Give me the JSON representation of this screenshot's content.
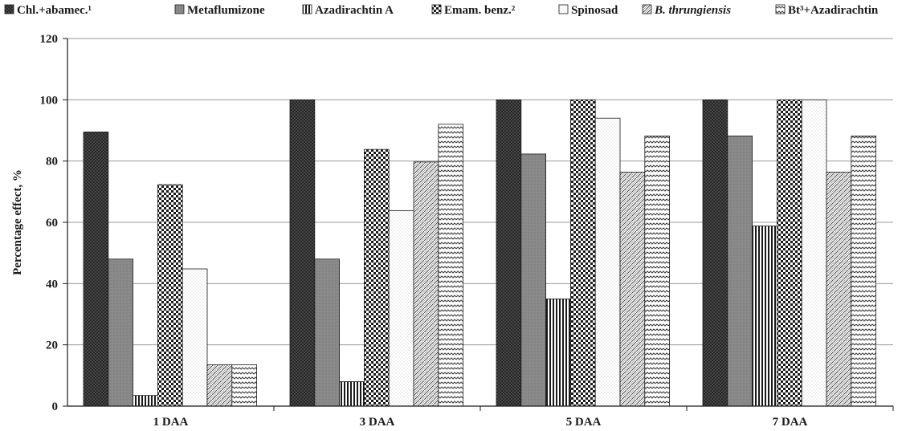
{
  "chart_data": {
    "type": "bar",
    "title": "",
    "xlabel": "",
    "ylabel": "Percentage effect, %",
    "ylim": [
      0,
      120
    ],
    "yticks": [
      0,
      20,
      40,
      60,
      80,
      100,
      120
    ],
    "grid": true,
    "legend_position": "top",
    "categories": [
      "1 DAA",
      "3 DAA",
      "5 DAA",
      "7 DAA"
    ],
    "series": [
      {
        "name": "Chl.+abamec.¹",
        "pattern": "dark-dots",
        "values": [
          89.5,
          100,
          100,
          100
        ]
      },
      {
        "name": "Metaflumizone",
        "pattern": "gray-solid",
        "values": [
          48,
          48,
          82.3,
          88.2
        ]
      },
      {
        "name": "Azadirachtin A",
        "pattern": "vertical-lines",
        "values": [
          3.5,
          8,
          35,
          58.8
        ]
      },
      {
        "name": "Emam. benz.²",
        "pattern": "checker",
        "values": [
          72.3,
          83.8,
          100,
          100
        ]
      },
      {
        "name": "Spinosad",
        "pattern": "light-dots",
        "values": [
          44.8,
          63.8,
          94,
          100
        ]
      },
      {
        "name": "B. thrungiensis",
        "italic": true,
        "pattern": "diagonal-weave",
        "values": [
          13.5,
          79.7,
          76.4,
          76.4
        ]
      },
      {
        "name": "Bt³+Azadirachtin",
        "pattern": "zigzag",
        "values": [
          13.5,
          92,
          88.2,
          88.2
        ]
      }
    ]
  }
}
